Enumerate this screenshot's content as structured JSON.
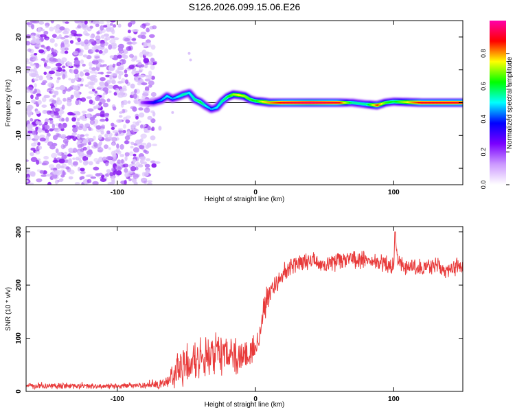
{
  "figure_title": "S126.2026.099.15.06.E26",
  "chart_data": [
    {
      "type": "heatmap",
      "title": "S126.2026.099.15.06.E26",
      "xlabel": "Height of straight line (km)",
      "ylabel": "Frequency (Hz)",
      "xlim": [
        -166,
        150
      ],
      "ylim": [
        -25,
        25
      ],
      "xticks": [
        "-100",
        "0",
        "100"
      ],
      "yticks": [
        "-20",
        "-10",
        "0",
        "10",
        "20"
      ],
      "xtick_values": [
        -100,
        0,
        100
      ],
      "ytick_values": [
        -20,
        -10,
        0,
        10,
        20
      ],
      "colorbar": {
        "label": "Normalized spectral amplitude",
        "range": [
          0,
          1
        ],
        "ticks": [
          "0.0",
          "0.2",
          "0.4",
          "0.6",
          "0.8"
        ],
        "tick_values": [
          0.0,
          0.2,
          0.4,
          0.6,
          0.8
        ],
        "colors": [
          "#ffffff",
          "#cc99ff",
          "#7a00ff",
          "#0000ff",
          "#00ffff",
          "#00ff00",
          "#ffff00",
          "#ff0000",
          "#ff00aa"
        ]
      },
      "noise_region_x": [
        -166,
        -73
      ],
      "ridge": {
        "x": [
          -82,
          -74,
          -68,
          -64,
          -60,
          -56,
          -52,
          -48,
          -44,
          -40,
          -36,
          -32,
          -28,
          -24,
          -20,
          -16,
          -12,
          -8,
          -4,
          0,
          5,
          10,
          20,
          40,
          60,
          70,
          80,
          88,
          94,
          100,
          120,
          150
        ],
        "freq": [
          0,
          0,
          0.8,
          2.0,
          1.2,
          1.8,
          2.5,
          3.0,
          1.0,
          0.2,
          -1.0,
          -2.0,
          -1.5,
          0.5,
          1.8,
          2.5,
          2.3,
          2.0,
          1.0,
          0.5,
          0.3,
          0.0,
          0.0,
          0.0,
          0.0,
          0.0,
          -0.5,
          -0.8,
          0.0,
          0.3,
          0.0,
          0.0
        ],
        "amplitude": [
          0.2,
          0.35,
          0.45,
          0.5,
          0.45,
          0.5,
          0.55,
          0.5,
          0.55,
          0.6,
          0.5,
          0.45,
          0.5,
          0.55,
          0.6,
          0.7,
          0.75,
          0.7,
          0.65,
          0.6,
          0.75,
          0.8,
          0.9,
          0.95,
          0.9,
          0.55,
          0.55,
          0.85,
          0.65,
          0.6,
          0.9,
          0.9
        ]
      }
    },
    {
      "type": "line",
      "xlabel": "Height of straight line (km)",
      "ylabel": "SNR (10 * v/v)",
      "xlim": [
        -166,
        150
      ],
      "ylim": [
        0,
        310
      ],
      "xticks": [
        "-100",
        "0",
        "100"
      ],
      "yticks": [
        "0",
        "100",
        "200",
        "300"
      ],
      "xtick_values": [
        -100,
        0,
        100
      ],
      "ytick_values": [
        0,
        100,
        200,
        300
      ],
      "series": [
        {
          "name": "SNR",
          "color": "#e83a3a",
          "x": [
            -166,
            -140,
            -110,
            -80,
            -66,
            -60,
            -55,
            -50,
            -45,
            -40,
            -35,
            -30,
            -25,
            -20,
            -15,
            -10,
            -5,
            0,
            3,
            5,
            7,
            9,
            12,
            15,
            20,
            25,
            30,
            40,
            50,
            60,
            70,
            80,
            90,
            95,
            100,
            101,
            103,
            110,
            120,
            130,
            140,
            150
          ],
          "y": [
            10,
            10,
            10,
            11,
            15,
            30,
            45,
            50,
            52,
            55,
            60,
            65,
            65,
            72,
            70,
            70,
            72,
            90,
            105,
            140,
            165,
            178,
            195,
            205,
            220,
            230,
            240,
            245,
            240,
            245,
            250,
            248,
            240,
            238,
            235,
            300,
            240,
            235,
            232,
            235,
            230,
            235
          ],
          "noise": [
            5,
            5,
            5,
            5,
            10,
            20,
            30,
            35,
            35,
            35,
            35,
            35,
            35,
            30,
            30,
            28,
            28,
            25,
            20,
            25,
            25,
            20,
            20,
            18,
            18,
            16,
            16,
            15,
            15,
            15,
            15,
            15,
            15,
            15,
            15,
            0,
            15,
            14,
            14,
            14,
            14,
            14
          ]
        }
      ]
    }
  ]
}
